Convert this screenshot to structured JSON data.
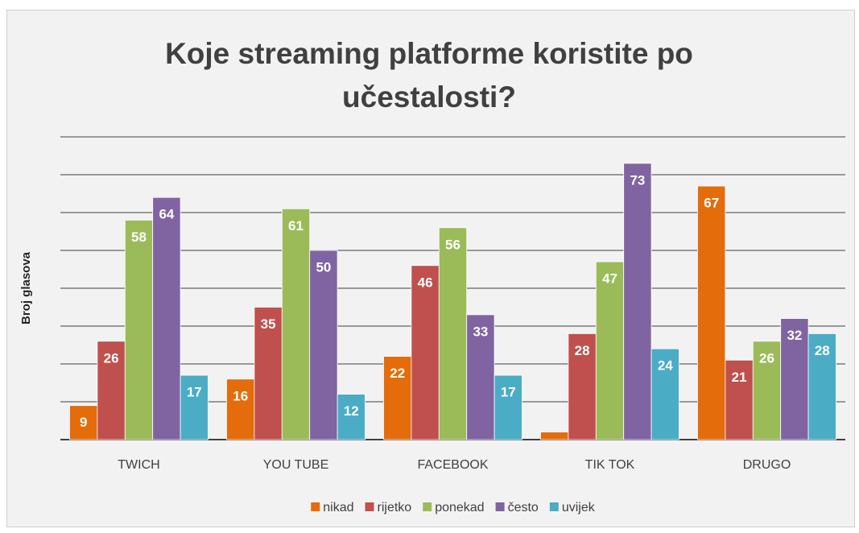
{
  "chart_data": {
    "type": "bar",
    "title": "Koje streaming platforme koristite po učestalosti?",
    "y_label": "Broj glasova",
    "categories": [
      "TWICH",
      "YOU TUBE",
      "FACEBOOK",
      "TIK TOK",
      "DRUGO"
    ],
    "series": [
      {
        "name": "nikad",
        "color": "#e46c0a",
        "values": [
          9,
          16,
          22,
          2,
          67
        ],
        "value_labels": [
          9,
          16,
          22,
          null,
          67
        ]
      },
      {
        "name": "rijetko",
        "color": "#c0504d",
        "values": [
          26,
          35,
          46,
          28,
          21
        ]
      },
      {
        "name": "ponekad",
        "color": "#9bbb59",
        "values": [
          58,
          61,
          56,
          47,
          26
        ]
      },
      {
        "name": "često",
        "color": "#8064a2",
        "values": [
          64,
          50,
          33,
          73,
          32
        ]
      },
      {
        "name": "uvijek",
        "color": "#4bacc6",
        "values": [
          17,
          12,
          17,
          24,
          28
        ]
      }
    ],
    "ylim": [
      0,
      80
    ],
    "yticks": [
      0,
      10,
      20,
      30,
      40,
      50,
      60,
      70,
      80
    ],
    "show_ytick_labels": false,
    "grid": true,
    "legend": "bottom"
  }
}
